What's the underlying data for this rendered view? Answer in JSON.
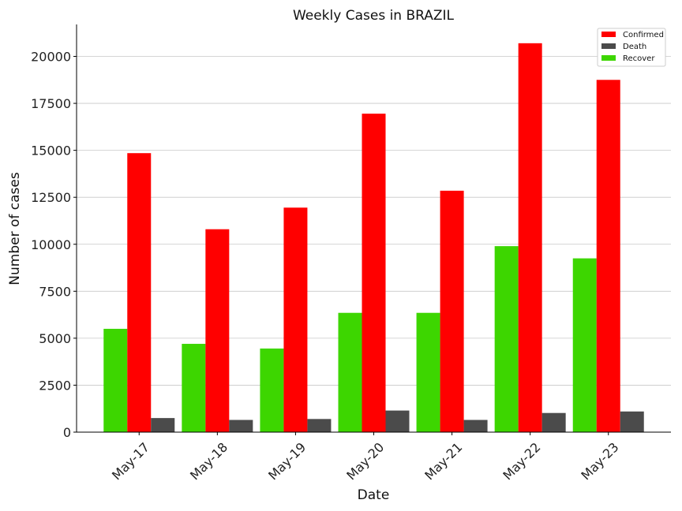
{
  "chart_data": {
    "type": "bar",
    "title": "Weekly Cases in BRAZIL",
    "xlabel": "Date",
    "ylabel": "Number of cases",
    "categories": [
      "May-17",
      "May-18",
      "May-19",
      "May-20",
      "May-21",
      "May-22",
      "May-23"
    ],
    "series": [
      {
        "name": "Recover",
        "color": "#3dd600",
        "values": [
          5500,
          4700,
          4450,
          6350,
          6350,
          9900,
          9250
        ]
      },
      {
        "name": "Confirmed",
        "color": "#ff0000",
        "values": [
          14850,
          10800,
          11950,
          16950,
          12850,
          20700,
          18750
        ]
      },
      {
        "name": "Death",
        "color": "#4b4b4b",
        "values": [
          750,
          650,
          700,
          1150,
          650,
          1020,
          1100
        ]
      }
    ],
    "legend_order": [
      "Confirmed",
      "Death",
      "Recover"
    ],
    "legend_position": "top-right",
    "ylim": [
      0,
      21700
    ],
    "yticks": [
      0,
      2500,
      5000,
      7500,
      10000,
      12500,
      15000,
      17500,
      20000
    ],
    "grid": "horizontal"
  }
}
